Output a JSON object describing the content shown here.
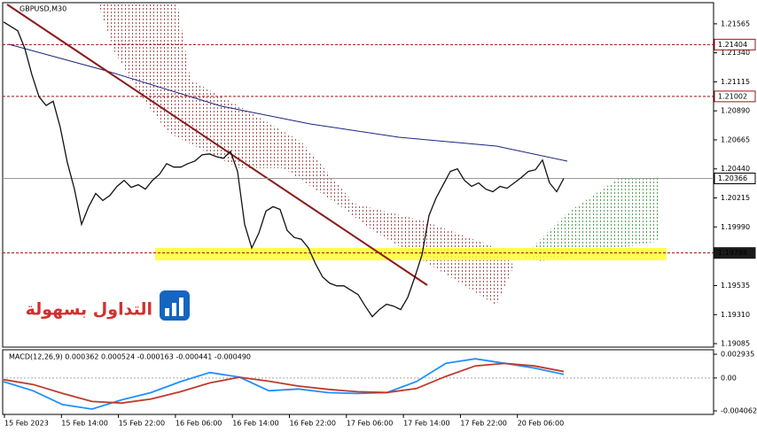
{
  "chart_data": [
    {
      "type": "line",
      "title": "GBPUSD,M30",
      "watermark": "التداول بسهولة",
      "x_labels": [
        "15 Feb 2023",
        "15 Feb 14:00",
        "15 Feb 22:00",
        "16 Feb 06:00",
        "16 Feb 14:00",
        "16 Feb 22:00",
        "17 Feb 06:00",
        "17 Feb 14:00",
        "17 Feb 22:00",
        "20 Feb 06:00"
      ],
      "series": [
        {
          "color": "#111111",
          "values": [
            1.21579,
            1.21545,
            1.21511,
            1.21374,
            1.2117,
            1.21,
            1.20931,
            1.20965,
            1.20761,
            1.20488,
            1.20283,
            1.2001,
            1.20147,
            1.20249,
            1.20195,
            1.20235,
            1.20304,
            1.20351,
            1.20297,
            1.20317,
            1.20283,
            1.20351,
            1.20399,
            1.20481,
            1.20454,
            1.20454,
            1.20481,
            1.20501,
            1.20549,
            1.20556,
            1.20535,
            1.20522,
            1.20576,
            1.2042,
            1.2001,
            1.19826,
            1.19942,
            1.20113,
            1.20147,
            1.20126,
            1.19962,
            1.19908,
            1.19894,
            1.19826,
            1.19703,
            1.19601,
            1.19553,
            1.19533,
            1.19533,
            1.19499,
            1.19465,
            1.19376,
            1.19294,
            1.19349,
            1.1939,
            1.19376,
            1.19349,
            1.19444,
            1.19601,
            1.19772,
            1.20079,
            1.20215,
            1.20317,
            1.2042,
            1.2044,
            1.20351,
            1.20304,
            1.20331,
            1.20283,
            1.20263,
            1.20304,
            1.2029,
            1.20331,
            1.20372,
            1.2042,
            1.20433,
            1.20508,
            1.20331,
            1.20263,
            1.20366
          ]
        }
      ],
      "ylim": [
        1.19058,
        1.21729
      ],
      "yticks": [
        1.21565,
        {
          "value": 1.2134,
          "label": "1.21340"
        },
        1.21115,
        {
          "value": 1.2089,
          "label": "1.20890"
        },
        1.20665,
        {
          "value": 1.2044,
          "label": "1.20440"
        },
        1.20215,
        {
          "value": 1.1999,
          "label": "1.19990"
        },
        1.19535,
        {
          "value": 1.1931,
          "label": "1.19310"
        },
        1.19085
      ],
      "levels": [
        {
          "value": 1.21404,
          "color": "#a01010"
        },
        {
          "value": 1.21002,
          "color": "#a01010"
        },
        {
          "value": 1.20366,
          "color": "#9a9a9a"
        },
        {
          "value": 1.19788,
          "color": "#a01010"
        }
      ]
    },
    {
      "type": "line",
      "title": "MACD(12,26,9) 0.000362 0.000524 -0.000163 -0.000441 -0.000490",
      "series": [
        {
          "color": "#1e90ff",
          "values": [
            -0.00045,
            -0.00158,
            -0.00328,
            -0.00384,
            -0.00271,
            -0.00181,
            -0.00045,
            0.00068,
            0.00011,
            -0.00158,
            -0.00136,
            -0.00181,
            -0.00192,
            -0.00181,
            -0.00045,
            0.00181,
            0.00237,
            0.00181,
            0.00124,
            0.00045
          ]
        },
        {
          "color": "#c0392b",
          "values": [
            -0.0002,
            -0.0008,
            -0.0019,
            -0.0029,
            -0.0031,
            -0.0026,
            -0.0017,
            -0.0006,
            0.0001,
            -0.0004,
            -0.001,
            -0.0014,
            -0.0017,
            -0.0018,
            -0.0013,
            0.0002,
            0.0015,
            0.0018,
            0.0015,
            0.0008
          ]
        }
      ],
      "ylim": [
        -0.0045,
        0.00349
      ],
      "yticks": [
        0.002935,
        {
          "value": 0,
          "label": "0.00"
        },
        -0.004062
      ]
    }
  ]
}
